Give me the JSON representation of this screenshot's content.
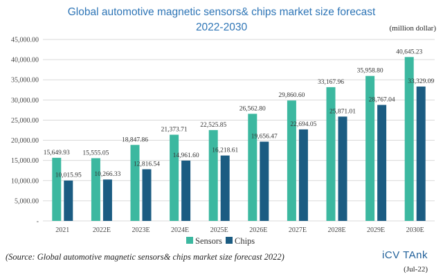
{
  "chart_data": {
    "type": "bar",
    "title": "Global automotive magnetic sensors& chips market size forecast",
    "subtitle": "2022-2030",
    "unit_label": "(million dollar)",
    "xlabel": "",
    "ylabel": "",
    "ylim": [
      0,
      45000
    ],
    "y_ticks": [
      0,
      5000,
      10000,
      15000,
      20000,
      25000,
      30000,
      35000,
      40000,
      45000
    ],
    "y_tick_labels": [
      "-",
      "5,000.00",
      "10,000.00",
      "15,000.00",
      "20,000.00",
      "25,000.00",
      "30,000.00",
      "35,000.00",
      "40,000.00",
      "45,000.00"
    ],
    "grid": true,
    "legend_position": "bottom",
    "categories": [
      "2021",
      "2022E",
      "2023E",
      "2024E",
      "2025E",
      "2026E",
      "2027E",
      "2028E",
      "2029E",
      "2030E"
    ],
    "series": [
      {
        "name": "Sensors",
        "color": "#3cb8a0",
        "values": [
          15649.93,
          15555.05,
          18847.86,
          21373.71,
          22525.85,
          26562.8,
          29860.6,
          33167.96,
          35958.8,
          40645.23
        ],
        "labels": [
          "15,649.93",
          "15,555.05",
          "18,847.86",
          "21,373.71",
          "22,525.85",
          "26,562.80",
          "29,860.60",
          "33,167.96",
          "35,958.80",
          "40,645.23"
        ]
      },
      {
        "name": "Chips",
        "color": "#1b5c82",
        "values": [
          10015.95,
          10266.33,
          12816.54,
          14961.6,
          16218.61,
          19656.47,
          22694.05,
          25871.01,
          28767.04,
          33329.09
        ],
        "labels": [
          "10,015.95",
          "10,266.33",
          "12,816.54",
          "14,961.60",
          "16,218.61",
          "19,656.47",
          "22,694.05",
          "25,871.01",
          "28,767.04",
          "33,329.09"
        ]
      }
    ]
  },
  "footer": {
    "source": "(Source: Global automotive magnetic sensors& chips market size forecast 2022)",
    "brand": "iCV TAnk",
    "date": "(Jul-22)"
  }
}
